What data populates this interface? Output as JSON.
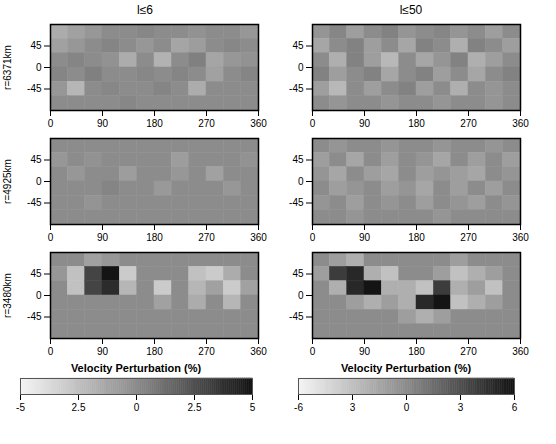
{
  "chart_data": {
    "type": "heatmap",
    "xlim": [
      0,
      360
    ],
    "xticks": [
      0,
      90,
      180,
      270,
      360
    ],
    "ylim": [
      -90,
      90
    ],
    "yticks": [
      -45,
      0,
      45
    ],
    "x_edges": [
      0,
      30,
      60,
      90,
      120,
      150,
      180,
      210,
      240,
      270,
      300,
      330,
      360
    ],
    "y_edges": [
      90,
      60,
      30,
      0,
      -30,
      -60,
      -90
    ],
    "rows": [
      {
        "label": "r=6371km"
      },
      {
        "label": "r=4925km"
      },
      {
        "label": "r=3480km"
      }
    ],
    "columns": [
      {
        "title": "l≤6",
        "colorbar": {
          "label": "Velocity Perturbation (%)",
          "range": [
            -5,
            5
          ],
          "ticks": [
            -5,
            {
              "value": -2.5,
              "label": "2.5"
            },
            0,
            2.5,
            5
          ]
        },
        "cells": [
          [
            [
              -1.5,
              -1,
              -0.5,
              0,
              0,
              0.2,
              0,
              0,
              -0.3,
              0,
              0,
              -0.5
            ],
            [
              -1,
              -0.5,
              0,
              0.3,
              0,
              -0.5,
              0,
              -1.2,
              -0.8,
              0,
              0.2,
              0
            ],
            [
              0,
              0.3,
              0,
              -0.3,
              -1.5,
              0,
              -1.8,
              0,
              0.5,
              -1.2,
              -0.5,
              -0.3
            ],
            [
              0.3,
              0,
              0.5,
              0,
              0,
              0.2,
              0,
              0.3,
              0,
              -1,
              0,
              0.3
            ],
            [
              -0.5,
              -2,
              0,
              0.2,
              0,
              0,
              0.3,
              0,
              -1.5,
              0,
              0,
              0
            ],
            [
              0,
              0,
              0,
              0,
              0.2,
              0,
              0,
              0,
              0,
              0,
              0,
              0
            ]
          ],
          [
            [
              0,
              0,
              0,
              0,
              0,
              0,
              0,
              0,
              0,
              0,
              0,
              0
            ],
            [
              -0.5,
              0,
              -0.3,
              0,
              0,
              0,
              0,
              -0.8,
              0,
              0,
              0,
              -0.3
            ],
            [
              0,
              -0.5,
              0,
              0,
              -0.8,
              0,
              0,
              -0.5,
              0,
              -1,
              0,
              0
            ],
            [
              0,
              0,
              0,
              0.3,
              0,
              0,
              -0.6,
              0,
              0,
              0,
              -0.5,
              0
            ],
            [
              0,
              0,
              -0.4,
              0,
              0,
              0,
              0,
              0,
              0,
              0,
              0,
              0
            ],
            [
              0,
              0,
              0,
              0,
              0,
              0,
              0,
              0,
              0,
              0,
              0,
              0
            ]
          ],
          [
            [
              0,
              0,
              -1,
              -0.5,
              0,
              0,
              0,
              0,
              0,
              0,
              0,
              0
            ],
            [
              -0.5,
              -2.5,
              3,
              5,
              -3,
              0,
              0,
              0,
              -2.5,
              -3,
              -1.5,
              0
            ],
            [
              0,
              -2.5,
              3,
              4,
              -2,
              0,
              -3,
              0,
              -2,
              -1,
              -3,
              -1
            ],
            [
              0,
              0,
              0,
              0,
              0,
              0,
              -1,
              0,
              -1.5,
              0,
              -2,
              0
            ],
            [
              0,
              0,
              0,
              0,
              0,
              0,
              0,
              0,
              0,
              0,
              0,
              0
            ],
            [
              0,
              0,
              0,
              0,
              0,
              0,
              0,
              0,
              0,
              0,
              0,
              0
            ]
          ]
        ]
      },
      {
        "title": "l≤50",
        "colorbar": {
          "label": "Velocity Perturbation (%)",
          "range": [
            -6,
            6
          ],
          "ticks": [
            -6,
            {
              "value": -3,
              "label": "3"
            },
            0,
            3,
            6
          ]
        },
        "cells": [
          [
            [
              -0.5,
              0.3,
              -1,
              0,
              0.5,
              -0.5,
              0,
              0.3,
              -0.5,
              0,
              -1,
              0
            ],
            [
              -1.5,
              0,
              0.5,
              -1,
              0,
              -1.5,
              0.5,
              0,
              -2,
              0.5,
              0,
              -1
            ],
            [
              0,
              -2,
              0.5,
              -1,
              -2.5,
              0,
              -1.5,
              -0.5,
              0.5,
              -2,
              -1,
              0
            ],
            [
              0.5,
              -1,
              0,
              0.5,
              -1.5,
              0,
              0.5,
              -1,
              0,
              -1.5,
              0,
              0.5
            ],
            [
              -1,
              -2.5,
              0,
              -1,
              0,
              0.5,
              -1,
              0,
              -2,
              0,
              -0.5,
              0
            ],
            [
              0,
              -0.5,
              0,
              0,
              -0.5,
              0,
              0,
              -0.5,
              0,
              0,
              -0.5,
              0
            ]
          ],
          [
            [
              0,
              -0.5,
              0,
              0,
              -0.5,
              0,
              0,
              -0.5,
              0,
              0,
              -0.5,
              0
            ],
            [
              -1,
              0,
              -1.5,
              0,
              -1,
              0,
              -0.5,
              -1.5,
              0,
              -1,
              0,
              -1
            ],
            [
              -0.5,
              -1.5,
              0,
              -1,
              -1.5,
              0,
              -1,
              -0.5,
              -1,
              -1.5,
              0,
              -0.5
            ],
            [
              0,
              -1,
              -0.5,
              0,
              -1,
              -0.5,
              -1.5,
              0,
              -1,
              0,
              -1,
              0
            ],
            [
              -0.5,
              0,
              -1,
              0,
              -0.5,
              0,
              -1,
              0,
              -0.5,
              -1,
              0,
              -0.5
            ],
            [
              0,
              0,
              -0.5,
              0,
              0,
              0,
              0,
              -0.5,
              0,
              0,
              0,
              0
            ]
          ],
          [
            [
              0,
              -1,
              -2,
              0,
              0,
              0,
              0,
              0,
              -1,
              0,
              0,
              0
            ],
            [
              -1,
              4,
              5,
              -2,
              -3,
              0,
              0,
              -1,
              -3,
              -2,
              -1,
              0
            ],
            [
              0,
              -2,
              5,
              6,
              -2,
              -2,
              -3,
              4,
              -2,
              -1,
              -3,
              0
            ],
            [
              0,
              0,
              -1,
              -2,
              -1,
              -2,
              5,
              6,
              -3,
              -2,
              -1,
              0
            ],
            [
              0,
              0,
              0,
              0,
              0,
              -1,
              -2,
              -1,
              0,
              0,
              0,
              0
            ],
            [
              0,
              0,
              0,
              0,
              0,
              0,
              0,
              0,
              0,
              0,
              0,
              0
            ]
          ]
        ]
      }
    ]
  }
}
